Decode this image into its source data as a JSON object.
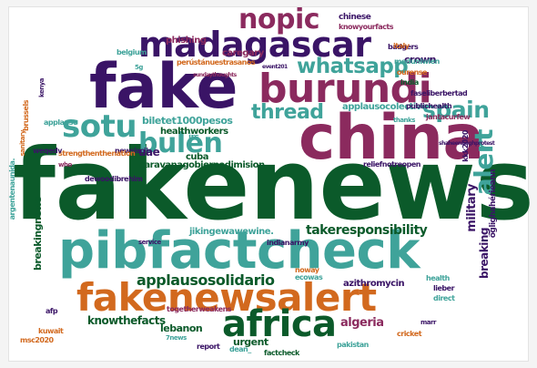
{
  "wordcloud": {
    "colors": {
      "dark_green": "#0b5a2a",
      "teal": "#3fa39a",
      "plum": "#8b2a5e",
      "purple": "#3a1466",
      "orange": "#d2691e",
      "green": "#2e7d32"
    },
    "words": [
      {
        "text": "fakenews",
        "color": "#0b5a2a",
        "orient": "h"
      },
      {
        "text": "pibfactcheck",
        "color": "#3fa39a",
        "orient": "h"
      },
      {
        "text": "china",
        "color": "#8b2a5e",
        "orient": "h"
      },
      {
        "text": "fake",
        "color": "#3a1466",
        "orient": "h"
      },
      {
        "text": "madagascar",
        "color": "#3a1466",
        "orient": "h"
      },
      {
        "text": "burundi",
        "color": "#8b2a5e",
        "orient": "h"
      },
      {
        "text": "fakenewsalert",
        "color": "#d2691e",
        "orient": "h"
      },
      {
        "text": "africa",
        "color": "#0b5a2a",
        "orient": "h"
      },
      {
        "text": "sotu",
        "color": "#3fa39a",
        "orient": "h"
      },
      {
        "text": "bulen",
        "color": "#3fa39a",
        "orient": "h"
      },
      {
        "text": "nopic",
        "color": "#8b2a5e",
        "orient": "h"
      },
      {
        "text": "whatsapp",
        "color": "#3fa39a",
        "orient": "h"
      },
      {
        "text": "thread",
        "color": "#3fa39a",
        "orient": "h"
      },
      {
        "text": "spain",
        "color": "#3fa39a",
        "orient": "h"
      },
      {
        "text": "alert",
        "color": "#3fa39a",
        "orient": "v"
      },
      {
        "text": "applausosolidario",
        "color": "#0b5a2a",
        "orient": "h"
      },
      {
        "text": "takeresponsibility",
        "color": "#0b5a2a",
        "orient": "h"
      },
      {
        "text": "caravanagobiernodimision",
        "color": "#0b5a2a",
        "orient": "h"
      },
      {
        "text": "biletet1000pesos",
        "color": "#3fa39a",
        "orient": "h"
      },
      {
        "text": "caregary",
        "color": "#8b2a5e",
        "orient": "h"
      },
      {
        "text": "phishing",
        "color": "#8b2a5e",
        "orient": "h"
      },
      {
        "text": "applausocolective",
        "color": "#3fa39a",
        "orient": "h"
      },
      {
        "text": "crown",
        "color": "#3a1466",
        "orient": "h"
      },
      {
        "text": "healthworkers",
        "color": "#0b5a2a",
        "orient": "h"
      },
      {
        "text": "cuba",
        "color": "#0b5a2a",
        "orient": "h"
      },
      {
        "text": "uae",
        "color": "#3a1466",
        "orient": "h"
      },
      {
        "text": "irs",
        "color": "#3fa39a",
        "orient": "h"
      },
      {
        "text": "military",
        "color": "#3a1466",
        "orient": "v"
      },
      {
        "text": "breaking",
        "color": "#3a1466",
        "orient": "v"
      },
      {
        "text": "breakingnews",
        "color": "#0b5a2a",
        "orient": "v"
      },
      {
        "text": "knowthefacts",
        "color": "#0b5a2a",
        "orient": "h"
      },
      {
        "text": "algeria",
        "color": "#8b2a5e",
        "orient": "h"
      },
      {
        "text": "lebanon",
        "color": "#0b5a2a",
        "orient": "h"
      },
      {
        "text": "urgent",
        "color": "#0b5a2a",
        "orient": "h"
      },
      {
        "text": "azithromycin",
        "color": "#3a1466",
        "orient": "h"
      },
      {
        "text": "jikingewawewine.",
        "color": "#3fa39a",
        "orient": "h"
      },
      {
        "text": "indianarmy",
        "color": "#3a1466",
        "orient": "h"
      },
      {
        "text": "chinese",
        "color": "#3a1466",
        "orient": "h"
      },
      {
        "text": "knowyourfacts",
        "color": "#8b2a5e",
        "orient": "h"
      },
      {
        "text": "badgers",
        "color": "#3a1466",
        "orient": "h"
      },
      {
        "text": "event201",
        "color": "#3a1466",
        "orient": "h"
      },
      {
        "text": "meduniwien",
        "color": "#3fa39a",
        "orient": "h"
      },
      {
        "text": "ourense",
        "color": "#d2691e",
        "orient": "h"
      },
      {
        "text": "india",
        "color": "#0b5a2a",
        "orient": "h"
      },
      {
        "text": "faseliberbertad",
        "color": "#3a1466",
        "orient": "h"
      },
      {
        "text": "publichealth",
        "color": "#3a1466",
        "orient": "h"
      },
      {
        "text": "jantacurfew",
        "color": "#8b2a5e",
        "orient": "h"
      },
      {
        "text": "thanks",
        "color": "#3fa39a",
        "orient": "h"
      },
      {
        "text": "kkk2020",
        "color": "#3a1466",
        "orient": "v"
      },
      {
        "text": "öglighahérieann",
        "color": "#3a1466",
        "orient": "v"
      },
      {
        "text": "shaheenbaghprotest",
        "color": "#3a1466",
        "orient": "h"
      },
      {
        "text": "relief​notreopen",
        "color": "#3a1466",
        "orient": "h"
      },
      {
        "text": "newsiscii.",
        "color": "#3a1466",
        "orient": "h"
      },
      {
        "text": "dewoodibrehim",
        "color": "#3a1466",
        "orient": "h"
      },
      {
        "text": "strengthenthenation",
        "color": "#d2691e",
        "orient": "h"
      },
      {
        "text": "weqedv",
        "color": "#3a1466",
        "orient": "h"
      },
      {
        "text": "applause",
        "color": "#3fa39a",
        "orient": "h"
      },
      {
        "text": "brussels",
        "color": "#d2691e",
        "orient": "v"
      },
      {
        "text": "sanitary",
        "color": "#d2691e",
        "orient": "v"
      },
      {
        "text": "kenya",
        "color": "#3a1466",
        "orient": "v"
      },
      {
        "text": "belgium",
        "color": "#3fa39a",
        "orient": "h"
      },
      {
        "text": "5g",
        "color": "#3fa39a",
        "orient": "h"
      },
      {
        "text": "perústánuestrasanos",
        "color": "#d2691e",
        "orient": "h"
      },
      {
        "text": "sundaythoughts",
        "color": "#8b2a5e",
        "orient": "h"
      },
      {
        "text": "italy",
        "color": "#d2691e",
        "orient": "h"
      },
      {
        "text": "argentenaunida.",
        "color": "#3fa39a",
        "orient": "v"
      },
      {
        "text": "who",
        "color": "#8b2a5e",
        "orient": "h"
      },
      {
        "text": "service",
        "color": "#3a1466",
        "orient": "h"
      },
      {
        "text": "noway",
        "color": "#d2691e",
        "orient": "h"
      },
      {
        "text": "ecowas",
        "color": "#3fa39a",
        "orient": "h"
      },
      {
        "text": "health",
        "color": "#3fa39a",
        "orient": "h"
      },
      {
        "text": "lieber",
        "color": "#3a1466",
        "orient": "h"
      },
      {
        "text": "direct",
        "color": "#3fa39a",
        "orient": "h"
      },
      {
        "text": "afp",
        "color": "#3a1466",
        "orient": "h"
      },
      {
        "text": "togetherweakens",
        "color": "#8b2a5e",
        "orient": "h"
      },
      {
        "text": "marr",
        "color": "#3a1466",
        "orient": "h"
      },
      {
        "text": "kuwait",
        "color": "#d2691e",
        "orient": "h"
      },
      {
        "text": "msc2020",
        "color": "#d2691e",
        "orient": "h"
      },
      {
        "text": "7news",
        "color": "#3fa39a",
        "orient": "h"
      },
      {
        "text": "report",
        "color": "#3a1466",
        "orient": "h"
      },
      {
        "text": "dean_",
        "color": "#3fa39a",
        "orient": "h"
      },
      {
        "text": "factcheck",
        "color": "#0b5a2a",
        "orient": "h"
      },
      {
        "text": "pakistan",
        "color": "#3fa39a",
        "orient": "h"
      },
      {
        "text": "cricket",
        "color": "#d2691e",
        "orient": "h"
      }
    ]
  }
}
